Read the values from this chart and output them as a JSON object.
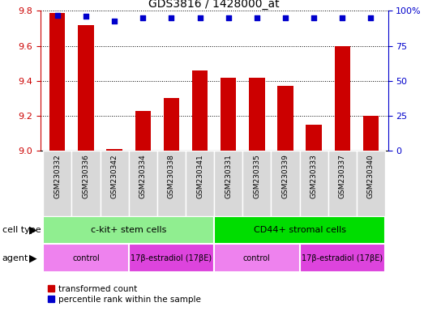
{
  "title": "GDS3816 / 1428000_at",
  "samples": [
    "GSM230332",
    "GSM230336",
    "GSM230342",
    "GSM230334",
    "GSM230338",
    "GSM230341",
    "GSM230331",
    "GSM230335",
    "GSM230339",
    "GSM230333",
    "GSM230337",
    "GSM230340"
  ],
  "red_values": [
    9.79,
    9.72,
    9.01,
    9.23,
    9.3,
    9.46,
    9.42,
    9.42,
    9.37,
    9.15,
    9.6,
    9.2
  ],
  "blue_values": [
    97,
    96,
    93,
    95,
    95,
    95,
    95,
    95,
    95,
    95,
    95,
    95
  ],
  "ylim_left": [
    9.0,
    9.8
  ],
  "ylim_right": [
    0,
    100
  ],
  "yticks_left": [
    9.0,
    9.2,
    9.4,
    9.6,
    9.8
  ],
  "yticks_right": [
    0,
    25,
    50,
    75,
    100
  ],
  "bar_color": "#CC0000",
  "dot_color": "#0000CC",
  "background_color": "#FFFFFF",
  "tick_color_left": "#CC0000",
  "tick_color_right": "#0000CC",
  "legend_red": "transformed count",
  "legend_blue": "percentile rank within the sample",
  "bar_width": 0.55,
  "cell_type_groups": [
    {
      "label": "c-kit+ stem cells",
      "start": 0,
      "end": 5,
      "color": "#90EE90"
    },
    {
      "label": "CD44+ stromal cells",
      "start": 6,
      "end": 11,
      "color": "#00DD00"
    }
  ],
  "agent_groups": [
    {
      "label": "control",
      "start": 0,
      "end": 2,
      "color": "#EE82EE"
    },
    {
      "label": "17β-estradiol (17βE)",
      "start": 3,
      "end": 5,
      "color": "#DD44DD"
    },
    {
      "label": "control",
      "start": 6,
      "end": 8,
      "color": "#EE82EE"
    },
    {
      "label": "17β-estradiol (17βE)",
      "start": 9,
      "end": 11,
      "color": "#DD44DD"
    }
  ]
}
